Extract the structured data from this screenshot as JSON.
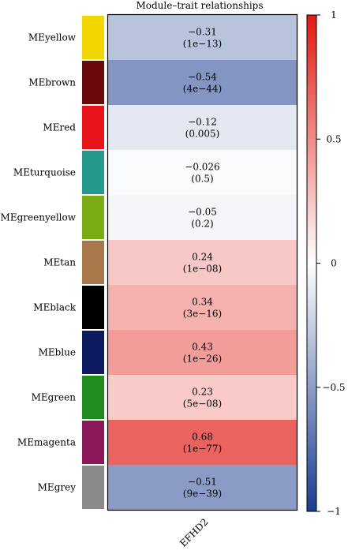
{
  "chart_data": {
    "type": "heatmap",
    "title": "Module–trait relationships",
    "xlabel": "",
    "ylabel": "",
    "columns": [
      "EFHD2"
    ],
    "rows": [
      {
        "module": "MEyellow",
        "color": "#f2d600",
        "r": -0.31,
        "r_label": "−0.31",
        "p_label": "(1e−13)"
      },
      {
        "module": "MEbrown",
        "color": "#6b0a0a",
        "r": -0.54,
        "r_label": "−0.54",
        "p_label": "(4e−44)"
      },
      {
        "module": "MEred",
        "color": "#e8141a",
        "r": -0.12,
        "r_label": "−0.12",
        "p_label": "(0.005)"
      },
      {
        "module": "MEturquoise",
        "color": "#239a8c",
        "r": -0.026,
        "r_label": "−0.026",
        "p_label": "(0.5)"
      },
      {
        "module": "MEgreenyellow",
        "color": "#7aab13",
        "r": -0.05,
        "r_label": "−0.05",
        "p_label": "(0.2)"
      },
      {
        "module": "MEtan",
        "color": "#a8774a",
        "r": 0.24,
        "r_label": "0.24",
        "p_label": "(1e−08)"
      },
      {
        "module": "MEblack",
        "color": "#000000",
        "r": 0.34,
        "r_label": "0.34",
        "p_label": "(3e−16)"
      },
      {
        "module": "MEblue",
        "color": "#0d1a60",
        "r": 0.43,
        "r_label": "0.43",
        "p_label": "(1e−26)"
      },
      {
        "module": "MEgreen",
        "color": "#228b1e",
        "r": 0.23,
        "r_label": "0.23",
        "p_label": "(5e−08)"
      },
      {
        "module": "MEmagenta",
        "color": "#8b1858",
        "r": 0.68,
        "r_label": "0.68",
        "p_label": "(1e−77)"
      },
      {
        "module": "MEgrey",
        "color": "#8a8a8a",
        "r": -0.51,
        "r_label": "−0.51",
        "p_label": "(9e−39)"
      }
    ],
    "color_scale": {
      "range": [
        -1,
        1
      ],
      "low": "#1a3d8f",
      "mid": "#ffffff",
      "high": "#e01a12"
    },
    "colorbar_ticks": [
      {
        "value": 1,
        "label": "1"
      },
      {
        "value": 0.5,
        "label": "0.5"
      },
      {
        "value": 0,
        "label": "0"
      },
      {
        "value": -0.5,
        "label": "−0.5"
      },
      {
        "value": -1,
        "label": "−1"
      }
    ]
  }
}
